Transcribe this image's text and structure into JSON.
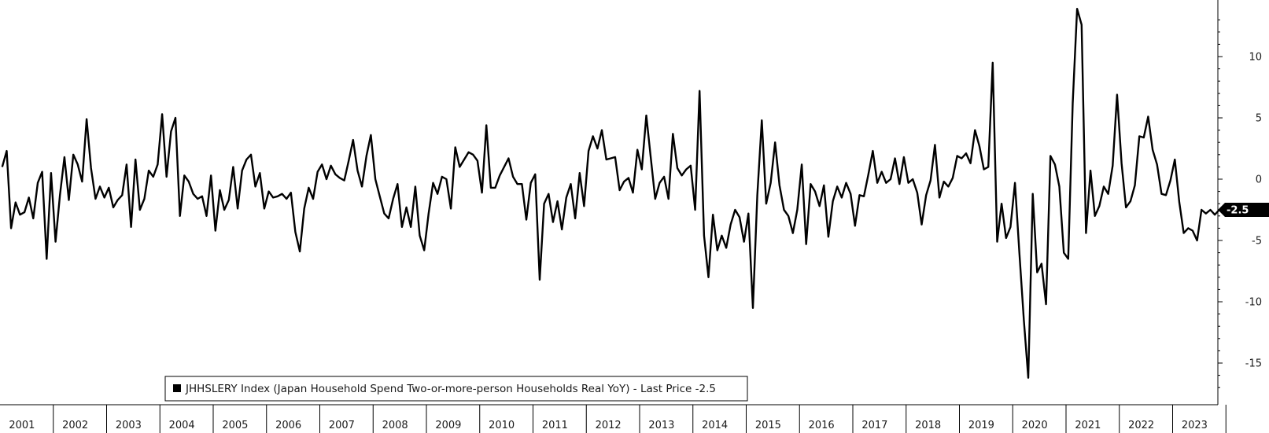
{
  "chart_data": {
    "type": "line",
    "title": "",
    "xlabel": "",
    "ylabel": "",
    "ylim": [
      -18,
      14
    ],
    "yticks": [
      10,
      5,
      0,
      -5,
      -10,
      -15
    ],
    "years": [
      "2001",
      "2002",
      "2003",
      "2004",
      "2005",
      "2006",
      "2007",
      "2008",
      "2009",
      "2010",
      "2011",
      "2012",
      "2013",
      "2014",
      "2015",
      "2016",
      "2017",
      "2018",
      "2019",
      "2020",
      "2021",
      "2022",
      "2023"
    ],
    "legend": {
      "text": "JHHSLERY Index (Japan Household Spend Two-or-more-person Households Real YoY) - Last Price -2.5",
      "placement": "bottom-left"
    },
    "last_price_label": "-2.5",
    "last_price": -2.5,
    "line_color": "#000000",
    "grid": false,
    "series": [
      {
        "name": "JHHSLERY Index",
        "x_start": "2001-01",
        "frequency": "monthly",
        "values": [
          1.0,
          2.3,
          -4.0,
          -1.9,
          -2.9,
          -2.7,
          -1.5,
          -3.2,
          -0.3,
          0.6,
          -6.5,
          0.5,
          -5.1,
          -1.3,
          1.8,
          -1.7,
          2.0,
          1.2,
          -0.2,
          4.9,
          0.9,
          -1.6,
          -0.6,
          -1.5,
          -0.7,
          -2.3,
          -1.7,
          -1.3,
          1.2,
          -3.9,
          1.6,
          -2.5,
          -1.6,
          0.7,
          0.2,
          1.2,
          5.3,
          0.2,
          3.9,
          5.0,
          -3.0,
          0.3,
          -0.2,
          -1.2,
          -1.6,
          -1.4,
          -3.0,
          0.3,
          -4.2,
          -0.9,
          -2.5,
          -1.7,
          1.0,
          -2.4,
          0.7,
          1.6,
          2.0,
          -0.6,
          0.5,
          -2.4,
          -1.0,
          -1.5,
          -1.4,
          -1.2,
          -1.6,
          -1.1,
          -4.3,
          -5.9,
          -2.4,
          -0.7,
          -1.6,
          0.6,
          1.2,
          0.0,
          1.1,
          0.4,
          0.1,
          -0.1,
          1.5,
          3.2,
          0.7,
          -0.6,
          1.9,
          3.6,
          0.0,
          -1.4,
          -2.8,
          -3.2,
          -1.6,
          -0.4,
          -3.9,
          -2.3,
          -3.9,
          -0.6,
          -4.6,
          -5.8,
          -2.8,
          -0.3,
          -1.2,
          0.2,
          0.0,
          -2.4,
          2.6,
          1.0,
          1.6,
          2.2,
          2.0,
          1.5,
          -1.1,
          4.4,
          -0.7,
          -0.7,
          0.3,
          1.0,
          1.7,
          0.2,
          -0.4,
          -0.4,
          -3.3,
          -0.3,
          0.4,
          -8.2,
          -2.0,
          -1.2,
          -3.5,
          -1.8,
          -4.1,
          -1.5,
          -0.4,
          -3.2,
          0.5,
          -2.2,
          2.3,
          3.5,
          2.5,
          4.0,
          1.6,
          1.7,
          1.8,
          -0.9,
          -0.2,
          0.1,
          -1.1,
          2.4,
          0.8,
          5.2,
          1.8,
          -1.6,
          -0.3,
          0.2,
          -1.6,
          3.7,
          0.9,
          0.3,
          0.8,
          1.1,
          -2.5,
          7.2,
          -4.6,
          -8.0,
          -2.9,
          -5.8,
          -4.6,
          -5.6,
          -3.7,
          -2.5,
          -3.1,
          -5.1,
          -2.8,
          -10.5,
          -1.3,
          4.8,
          -2.0,
          -0.3,
          3.0,
          -0.5,
          -2.5,
          -3.0,
          -4.4,
          -2.5,
          1.2,
          -5.3,
          -0.4,
          -1.0,
          -2.2,
          -0.5,
          -4.7,
          -1.8,
          -0.6,
          -1.5,
          -0.3,
          -1.2,
          -3.8,
          -1.3,
          -1.4,
          0.4,
          2.3,
          -0.3,
          0.6,
          -0.3,
          0.0,
          1.7,
          -0.4,
          1.8,
          -0.3,
          0.0,
          -1.1,
          -3.7,
          -1.3,
          -0.1,
          2.8,
          -1.5,
          -0.2,
          -0.6,
          0.1,
          1.9,
          1.7,
          2.1,
          1.3,
          4.0,
          2.7,
          0.8,
          1.0,
          9.5,
          -5.1,
          -2.0,
          -4.8,
          -3.9,
          -0.3,
          -6.0,
          -11.5,
          -16.2,
          -1.2,
          -7.6,
          -6.9,
          -10.2,
          1.9,
          1.2,
          -0.6,
          -6.0,
          -6.5,
          6.2,
          13.9,
          12.6,
          -4.4,
          0.7,
          -3.0,
          -2.2,
          -0.6,
          -1.2,
          1.1,
          6.9,
          1.3,
          -2.3,
          -1.8,
          -0.5,
          3.5,
          3.4,
          5.1,
          2.4,
          1.2,
          -1.2,
          -1.3,
          -0.1,
          1.6,
          -1.9,
          -4.4,
          -4.0,
          -4.2,
          -5.0,
          -2.5,
          -2.8,
          -2.5,
          -2.9,
          -2.5
        ]
      }
    ]
  }
}
